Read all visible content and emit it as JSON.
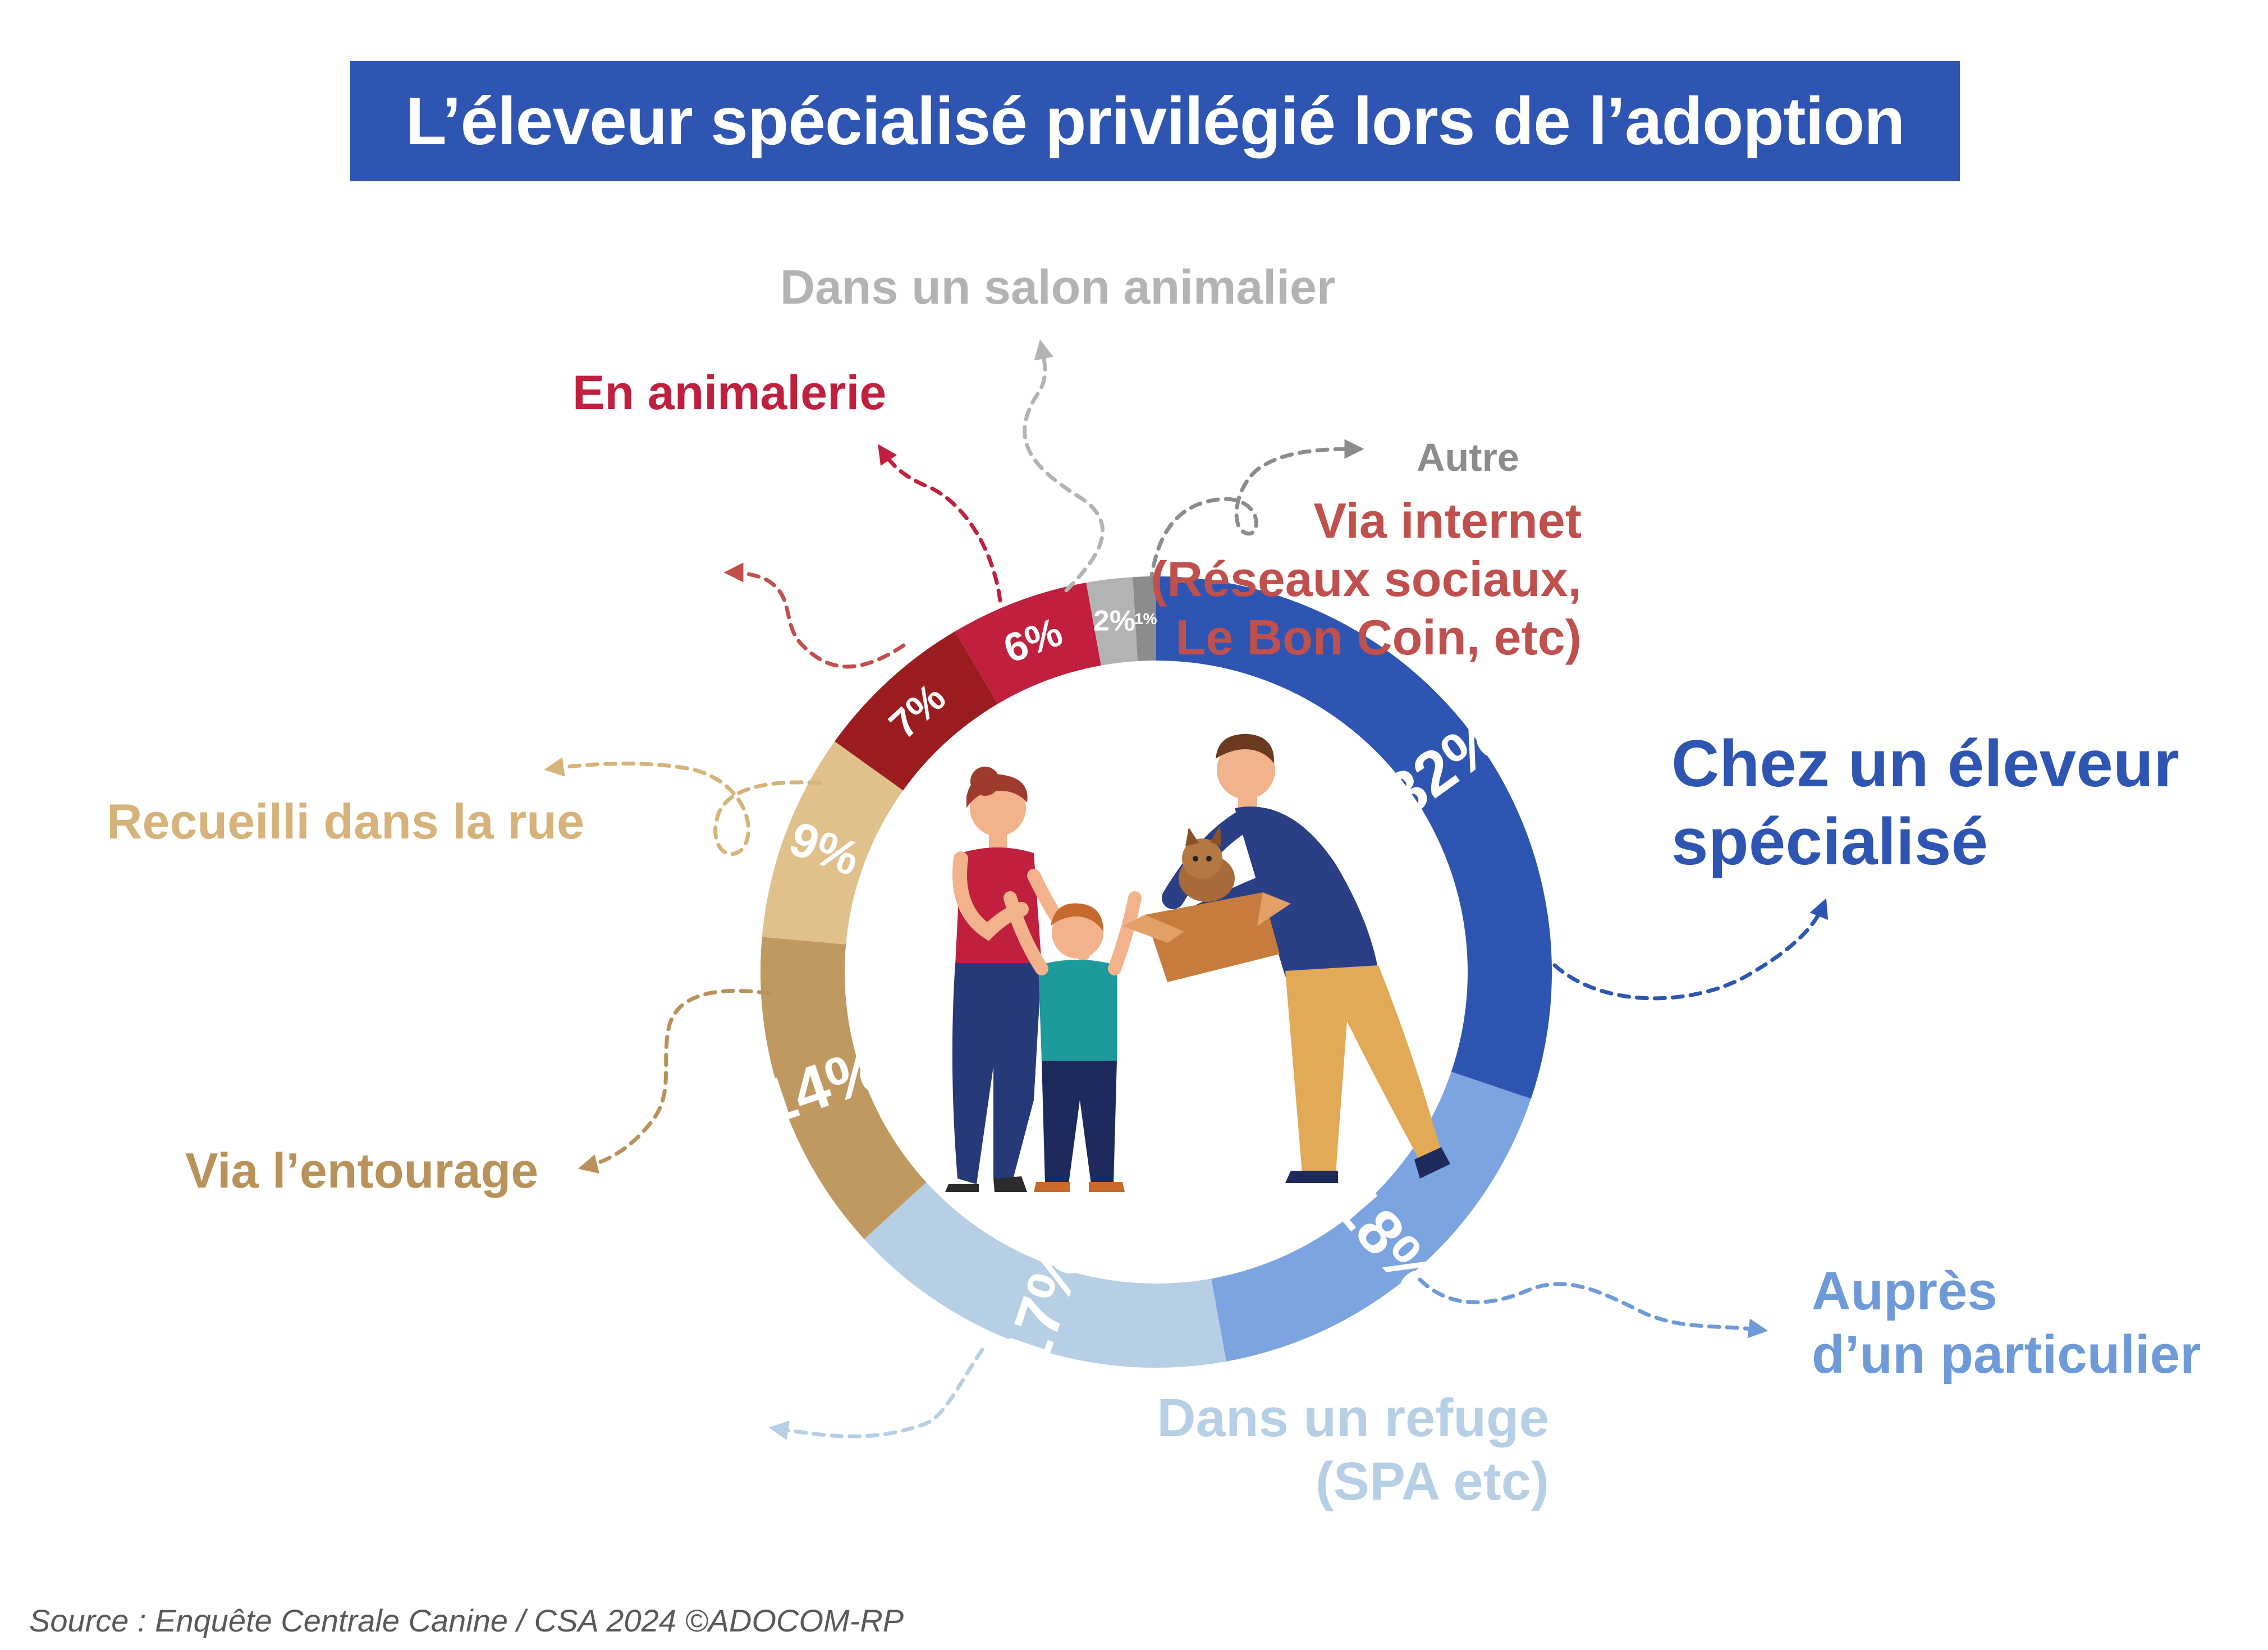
{
  "header": {
    "title": "L’éleveur spécialisé privilégié lors de l’adoption"
  },
  "source": "Source : Enquête Centrale Canine / CSA 2024 ©ADOCOM-RP",
  "chart_data": {
    "type": "pie",
    "title": "L’éleveur spécialisé privilégié lors de l’adoption",
    "unit": "%",
    "slices": [
      {
        "key": "eleveur",
        "value": 32,
        "value_label": "32%",
        "label_lines": [
          "Chez un éleveur",
          "spécialisé"
        ],
        "color": "#2f55b3",
        "label_color": "#2f55b3"
      },
      {
        "key": "particulier",
        "value": 18,
        "value_label": "18%",
        "label_lines": [
          "Auprès",
          "d’un particulier"
        ],
        "color": "#7ca4e0",
        "label_color": "#6e9ad8"
      },
      {
        "key": "refuge",
        "value": 17,
        "value_label": "17%",
        "label_lines": [
          "Dans un refuge",
          "(SPA etc)"
        ],
        "color": "#b7cfe5",
        "label_color": "#b7cfe5"
      },
      {
        "key": "entourage",
        "value": 14,
        "value_label": "14%",
        "label_lines": [
          "Via l’entourage"
        ],
        "color": "#bf9960",
        "label_color": "#b8925a"
      },
      {
        "key": "rue",
        "value": 9,
        "value_label": "9%",
        "label_lines": [
          "Recueilli dans la rue"
        ],
        "color": "#e0c08b",
        "label_color": "#d6b37a"
      },
      {
        "key": "internet",
        "value": 7,
        "value_label": "7%",
        "label_lines": [
          "Via internet",
          "(Réseaux sociaux,",
          "Le Bon Coin, etc)"
        ],
        "color": "#9b1c1f",
        "label_color": "#c0504d"
      },
      {
        "key": "animalerie",
        "value": 6,
        "value_label": "6%",
        "label_lines": [
          "En animalerie"
        ],
        "color": "#c0203d",
        "label_color": "#c0203d"
      },
      {
        "key": "salon",
        "value": 2,
        "value_label": "2%",
        "label_lines": [
          "Dans un salon animalier"
        ],
        "color": "#b3b3b3",
        "label_color": "#b3b3b3"
      },
      {
        "key": "autre",
        "value": 1,
        "value_label": "1%",
        "label_lines": [
          "Autre"
        ],
        "color": "#8c8c8c",
        "label_color": "#8c8c8c"
      }
    ]
  },
  "illustration": {
    "subject": "family-adopting-puppy-illustration"
  }
}
